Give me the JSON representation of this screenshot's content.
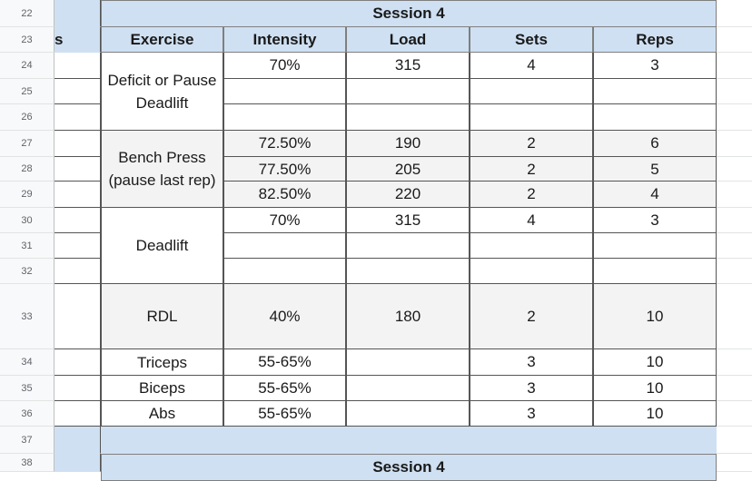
{
  "row_numbers": [
    "22",
    "23",
    "24",
    "25",
    "26",
    "27",
    "28",
    "29",
    "30",
    "31",
    "32",
    "33",
    "34",
    "35",
    "36",
    "37",
    "38"
  ],
  "session_title": "Session 4",
  "session_title_next": "Session 4",
  "left_column_fragment": "s",
  "headers": {
    "exercise": "Exercise",
    "intensity": "Intensity",
    "load": "Load",
    "sets": "Sets",
    "reps": "Reps"
  },
  "exercises": [
    {
      "name": "Deficit or Pause Deadlift",
      "rows": [
        {
          "intensity": "70%",
          "load": "315",
          "sets": "4",
          "reps": "3"
        },
        {
          "intensity": "",
          "load": "",
          "sets": "",
          "reps": ""
        },
        {
          "intensity": "",
          "load": "",
          "sets": "",
          "reps": ""
        }
      ]
    },
    {
      "name": "Bench Press (pause last rep)",
      "rows": [
        {
          "intensity": "72.50%",
          "load": "190",
          "sets": "2",
          "reps": "6"
        },
        {
          "intensity": "77.50%",
          "load": "205",
          "sets": "2",
          "reps": "5"
        },
        {
          "intensity": "82.50%",
          "load": "220",
          "sets": "2",
          "reps": "4"
        }
      ]
    },
    {
      "name": "Deadlift",
      "rows": [
        {
          "intensity": "70%",
          "load": "315",
          "sets": "4",
          "reps": "3"
        },
        {
          "intensity": "",
          "load": "",
          "sets": "",
          "reps": ""
        },
        {
          "intensity": "",
          "load": "",
          "sets": "",
          "reps": ""
        }
      ]
    },
    {
      "name": "RDL",
      "rows": [
        {
          "intensity": "40%",
          "load": "180",
          "sets": "2",
          "reps": "10"
        }
      ]
    },
    {
      "name": "Triceps",
      "rows": [
        {
          "intensity": "55-65%",
          "load": "",
          "sets": "3",
          "reps": "10"
        }
      ]
    },
    {
      "name": "Biceps",
      "rows": [
        {
          "intensity": "55-65%",
          "load": "",
          "sets": "3",
          "reps": "10"
        }
      ]
    },
    {
      "name": "Abs",
      "rows": [
        {
          "intensity": "55-65%",
          "load": "",
          "sets": "3",
          "reps": "10"
        }
      ]
    }
  ],
  "colors": {
    "header_band": "#cfe0f2",
    "gray_block": "#f3f3f3",
    "row_header_bg": "#f8f9fa"
  }
}
